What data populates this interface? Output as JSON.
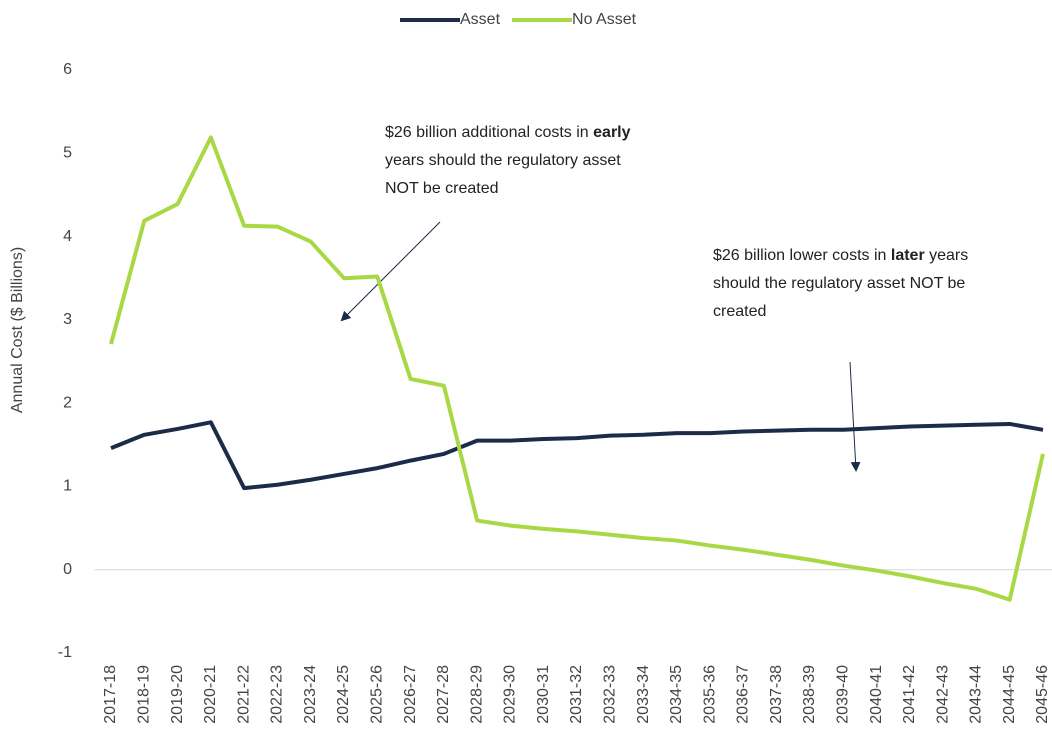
{
  "chart_data": {
    "type": "line",
    "y_label": "Annual Cost ($ Billions)",
    "categories": [
      "2017-18",
      "2018-19",
      "2019-20",
      "2020-21",
      "2021-22",
      "2022-23",
      "2023-24",
      "2024-25",
      "2025-26",
      "2026-27",
      "2027-28",
      "2028-29",
      "2029-30",
      "2030-31",
      "2031-32",
      "2032-33",
      "2033-34",
      "2034-35",
      "2035-36",
      "2036-37",
      "2037-38",
      "2038-39",
      "2039-40",
      "2040-41",
      "2041-42",
      "2042-43",
      "2043-44",
      "2044-45",
      "2045-46"
    ],
    "series": [
      {
        "name": "Asset",
        "color": "#1c2b48",
        "values": [
          1.46,
          1.62,
          1.69,
          1.77,
          0.98,
          1.02,
          1.08,
          1.15,
          1.22,
          1.31,
          1.39,
          1.55,
          1.55,
          1.57,
          1.58,
          1.61,
          1.62,
          1.64,
          1.64,
          1.66,
          1.67,
          1.68,
          1.68,
          1.7,
          1.72,
          1.73,
          1.74,
          1.75,
          1.68
        ]
      },
      {
        "name": "No Asset",
        "color": "#a9d845",
        "values": [
          2.71,
          4.19,
          4.39,
          5.19,
          4.13,
          4.12,
          3.94,
          3.5,
          3.52,
          2.29,
          2.21,
          0.59,
          0.53,
          0.49,
          0.46,
          0.42,
          0.38,
          0.35,
          0.29,
          0.24,
          0.18,
          0.12,
          0.05,
          -0.01,
          -0.08,
          -0.16,
          -0.23,
          -0.36,
          1.39
        ]
      }
    ],
    "ylim": [
      -1,
      6
    ],
    "yticks": [
      -1,
      0,
      1,
      2,
      3,
      4,
      5,
      6
    ],
    "legend": "top",
    "annotations": [
      {
        "lines": [
          [
            {
              "text": "$26 billion additional costs in ",
              "bold": false
            },
            {
              "text": "early",
              "bold": true
            }
          ],
          [
            {
              "text": "years should the regulatory asset",
              "bold": false
            }
          ],
          [
            {
              "text": "NOT be created",
              "bold": false
            }
          ]
        ]
      },
      {
        "lines": [
          [
            {
              "text": "$26 billion lower costs in ",
              "bold": false
            },
            {
              "text": "later",
              "bold": true
            },
            {
              "text": " years",
              "bold": false
            }
          ],
          [
            {
              "text": "should the regulatory asset NOT be",
              "bold": false
            }
          ],
          [
            {
              "text": "created",
              "bold": false
            }
          ]
        ]
      }
    ]
  }
}
